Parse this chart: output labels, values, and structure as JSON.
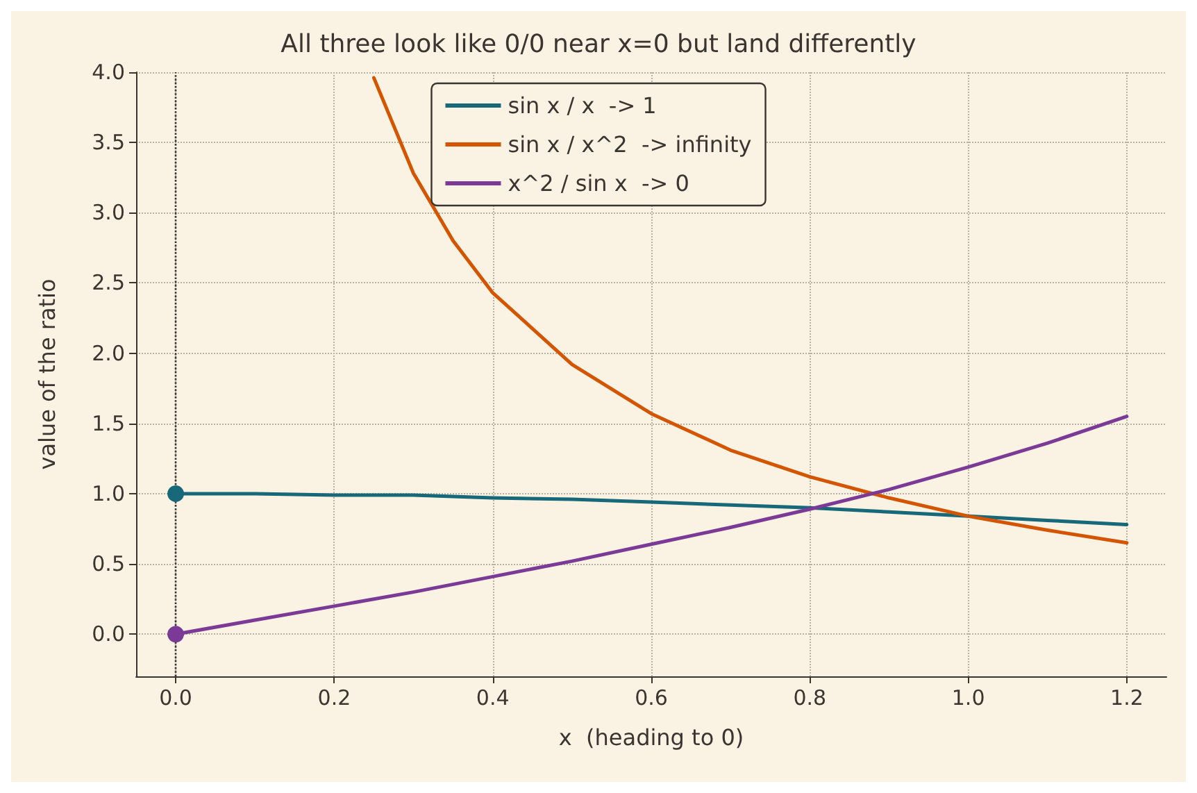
{
  "chart_data": {
    "type": "line",
    "title": "All three look like 0/0 near x=0 but land differently",
    "xlabel": "x  (heading to 0)",
    "ylabel": "value of the ratio",
    "xlim": [
      -0.05,
      1.25
    ],
    "ylim": [
      -0.3,
      4.0
    ],
    "xticks": [
      {
        "value": 0,
        "label": "0.0"
      },
      {
        "value": 0.2,
        "label": "0.2"
      },
      {
        "value": 0.4,
        "label": "0.4"
      },
      {
        "value": 0.6,
        "label": "0.6"
      },
      {
        "value": 0.8,
        "label": "0.8"
      },
      {
        "value": 1.0,
        "label": "1.0"
      },
      {
        "value": 1.2,
        "label": "1.2"
      }
    ],
    "yticks": [
      {
        "value": 0,
        "label": "0.0"
      },
      {
        "value": 0.5,
        "label": "0.5"
      },
      {
        "value": 1,
        "label": "1.0"
      },
      {
        "value": 1.5,
        "label": "1.5"
      },
      {
        "value": 2,
        "label": "2.0"
      },
      {
        "value": 2.5,
        "label": "2.5"
      },
      {
        "value": 3,
        "label": "3.0"
      },
      {
        "value": 3.5,
        "label": "3.5"
      },
      {
        "value": 4,
        "label": "4.0"
      }
    ],
    "grid": true,
    "legend": "top",
    "marker": "none",
    "line_style": "solid",
    "ref_lines": [
      {
        "axis": "x",
        "value": 0,
        "color": "#333333",
        "line_style": "dotted"
      }
    ],
    "series": [
      {
        "name": "sin x / x  -> 1",
        "color": "#17697a",
        "x": [
          0,
          0.1,
          0.2,
          0.3,
          0.4,
          0.5,
          0.6,
          0.7,
          0.8,
          0.9,
          1.0,
          1.1,
          1.2
        ],
        "values": [
          1.0,
          1.0,
          0.99,
          0.99,
          0.97,
          0.96,
          0.94,
          0.92,
          0.9,
          0.87,
          0.84,
          0.81,
          0.78
        ]
      },
      {
        "name": "sin x / x^2  -> infinity",
        "color": "#d45500",
        "x": [
          0.25,
          0.3,
          0.35,
          0.4,
          0.5,
          0.6,
          0.7,
          0.8,
          0.9,
          1.0,
          1.1,
          1.2
        ],
        "values": [
          3.96,
          3.28,
          2.8,
          2.43,
          1.92,
          1.57,
          1.31,
          1.12,
          0.97,
          0.84,
          0.74,
          0.65
        ]
      },
      {
        "name": "x^2 / sin x  -> 0",
        "color": "#7b3a96",
        "x": [
          0,
          0.1,
          0.2,
          0.3,
          0.4,
          0.5,
          0.6,
          0.7,
          0.8,
          0.9,
          1.0,
          1.1,
          1.2
        ],
        "values": [
          0,
          0.1,
          0.2,
          0.3,
          0.41,
          0.52,
          0.64,
          0.76,
          0.89,
          1.03,
          1.19,
          1.36,
          1.55
        ]
      },
      {
        "type": "scatter",
        "marker": "circle",
        "color": "#17697a",
        "x": [
          0
        ],
        "values": [
          1
        ]
      },
      {
        "type": "scatter",
        "marker": "circle",
        "color": "#7b3a96",
        "x": [
          0
        ],
        "values": [
          0
        ]
      }
    ]
  }
}
